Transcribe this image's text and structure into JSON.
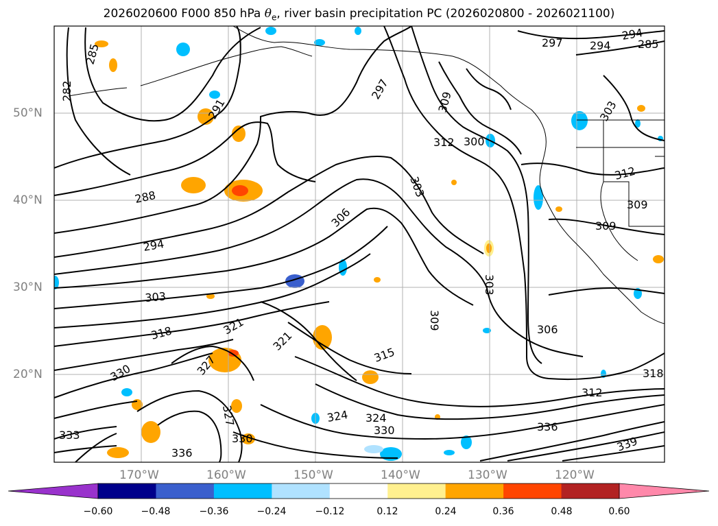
{
  "title": {
    "prefix": "2026020600 F000 850 hPa ",
    "symbol": "θ",
    "subscript": "e",
    "suffix": ", river basin precipitation PC (2026020800 - 2026021100)"
  },
  "map": {
    "lat_labels": [
      "50°N",
      "40°N",
      "30°N",
      "20°N"
    ],
    "lon_labels": [
      "170°W",
      "160°W",
      "150°W",
      "140°W",
      "130°W",
      "120°W"
    ],
    "contour_labels": [
      "297",
      "294",
      "282",
      "285",
      "291",
      "288",
      "294",
      "303",
      "318",
      "321",
      "327",
      "330",
      "312",
      "300",
      "309",
      "306",
      "303",
      "309",
      "306",
      "312",
      "309",
      "303",
      "321",
      "324",
      "327",
      "330",
      "333",
      "336",
      "339",
      "318",
      "315",
      "312",
      "324",
      "330",
      "336",
      "297",
      "294",
      "285",
      "309",
      "303"
    ],
    "contour_color": "#000000",
    "coast_color": "#000000",
    "grid_color": "#b0b0b0"
  },
  "colorbar": {
    "ticks": [
      "−0.60",
      "−0.48",
      "−0.36",
      "−0.24",
      "−0.12",
      "0.12",
      "0.24",
      "0.36",
      "0.48",
      "0.60"
    ],
    "colors": [
      "#9932cc",
      "#00008b",
      "#3a5fcd",
      "#00bfff",
      "#b0e2ff",
      "#ffffff",
      "#fff08f",
      "#ffa500",
      "#ff4500",
      "#b22222",
      "#ff88aa"
    ]
  }
}
